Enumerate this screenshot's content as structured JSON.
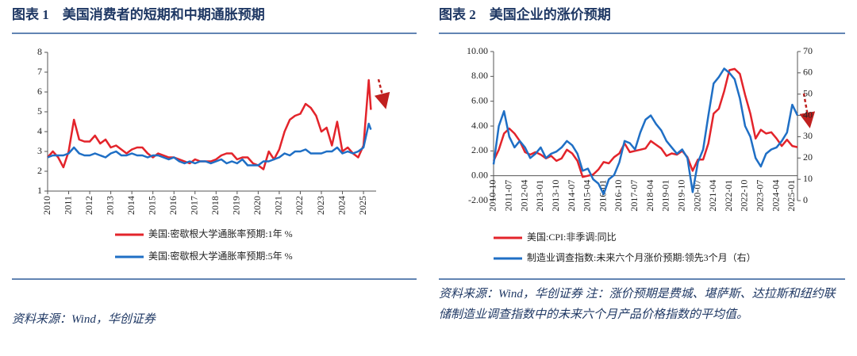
{
  "chart_data": [
    {
      "type": "line",
      "title": "图表 1　美国消费者的短期和中期通胀预期",
      "x": [
        2010,
        2010.25,
        2010.5,
        2010.75,
        2011,
        2011.25,
        2011.5,
        2011.75,
        2012,
        2012.25,
        2012.5,
        2012.75,
        2013,
        2013.25,
        2013.5,
        2013.75,
        2014,
        2014.25,
        2014.5,
        2014.75,
        2015,
        2015.25,
        2015.5,
        2015.75,
        2016,
        2016.25,
        2016.5,
        2016.75,
        2017,
        2017.25,
        2017.5,
        2017.75,
        2018,
        2018.25,
        2018.5,
        2018.75,
        2019,
        2019.25,
        2019.5,
        2019.75,
        2020,
        2020.25,
        2020.5,
        2020.75,
        2021,
        2021.25,
        2021.5,
        2021.75,
        2022,
        2022.25,
        2022.5,
        2022.75,
        2023,
        2023.25,
        2023.5,
        2023.75,
        2024,
        2024.25,
        2024.5,
        2024.75,
        2025,
        2025.25,
        2025.35
      ],
      "series": [
        {
          "name": "美国:密歇根大学通胀率预期:1年 %",
          "color": "#e3242b",
          "values": [
            2.7,
            3.0,
            2.7,
            2.2,
            3.0,
            4.6,
            3.6,
            3.5,
            3.5,
            3.8,
            3.4,
            3.6,
            3.2,
            3.3,
            3.1,
            2.9,
            3.1,
            3.2,
            3.2,
            2.9,
            2.7,
            2.9,
            2.8,
            2.7,
            2.7,
            2.6,
            2.5,
            2.4,
            2.6,
            2.5,
            2.5,
            2.5,
            2.6,
            2.8,
            2.9,
            2.9,
            2.6,
            2.7,
            2.7,
            2.4,
            2.3,
            2.1,
            3.0,
            2.6,
            3.1,
            4.0,
            4.6,
            4.8,
            4.9,
            5.4,
            5.2,
            4.8,
            4.0,
            4.2,
            3.3,
            4.5,
            3.0,
            3.2,
            2.9,
            2.7,
            3.3,
            6.6,
            5.1
          ]
        },
        {
          "name": "美国:密歇根大学通胀率预期:5年 %",
          "color": "#1f6fc5",
          "values": [
            2.7,
            2.8,
            2.8,
            2.8,
            2.9,
            3.2,
            2.9,
            2.8,
            2.8,
            2.9,
            2.8,
            2.7,
            2.9,
            3.0,
            2.8,
            2.8,
            2.9,
            2.8,
            2.8,
            2.7,
            2.8,
            2.8,
            2.7,
            2.6,
            2.7,
            2.5,
            2.4,
            2.5,
            2.4,
            2.5,
            2.5,
            2.4,
            2.5,
            2.6,
            2.4,
            2.5,
            2.4,
            2.6,
            2.3,
            2.3,
            2.3,
            2.5,
            2.5,
            2.6,
            2.7,
            2.9,
            2.8,
            3.0,
            3.0,
            3.1,
            2.9,
            2.9,
            2.9,
            3.0,
            3.0,
            3.2,
            2.9,
            3.0,
            2.9,
            3.0,
            3.2,
            4.4,
            4.1
          ]
        }
      ],
      "xlim": [
        2010,
        2025.6
      ],
      "xticks": [
        2010,
        2011,
        2012,
        2013,
        2014,
        2015,
        2016,
        2017,
        2018,
        2019,
        2020,
        2021,
        2022,
        2023,
        2024,
        2025
      ],
      "ylim": [
        1,
        8
      ],
      "yticks": [
        1,
        2,
        3,
        4,
        5,
        6,
        7,
        8
      ],
      "grid": false
    },
    {
      "type": "line",
      "title": "图表 2　美国企业的涨价预期",
      "categories": [
        "2010-10",
        null,
        null,
        "2011-07",
        null,
        null,
        "2012-04",
        null,
        null,
        "2013-01",
        null,
        null,
        "2013-10",
        null,
        null,
        "2014-07",
        null,
        null,
        "2015-04",
        null,
        null,
        "2016-01",
        null,
        null,
        "2016-10",
        null,
        null,
        "2017-07",
        null,
        null,
        "2018-04",
        null,
        null,
        "2019-01",
        null,
        null,
        "2019-10",
        null,
        null,
        "2020-07",
        null,
        null,
        "2021-04",
        null,
        null,
        "2022-01",
        null,
        null,
        "2022-10",
        null,
        null,
        "2023-07",
        null,
        null,
        "2024-04",
        null,
        null,
        "2025-01",
        null
      ],
      "series": [
        {
          "name": "美国:CPI:非季调:同比",
          "color": "#e3242b",
          "values": [
            1.2,
            2.1,
            3.4,
            3.8,
            3.4,
            2.8,
            1.9,
            1.7,
            1.9,
            1.7,
            1.4,
            1.6,
            1.2,
            1.4,
            2.1,
            1.8,
            1.2,
            -0.1,
            0.0,
            0.1,
            0.5,
            1.1,
            1.0,
            1.5,
            1.8,
            2.6,
            1.9,
            2.0,
            2.1,
            2.2,
            2.8,
            2.5,
            2.2,
            1.6,
            1.8,
            1.7,
            2.0,
            1.5,
            0.4,
            1.3,
            1.3,
            2.6,
            5.0,
            5.4,
            6.8,
            8.5,
            8.6,
            8.2,
            6.5,
            5.0,
            3.0,
            3.7,
            3.4,
            3.5,
            3.0,
            2.4,
            2.9,
            2.4,
            2.3
          ]
        },
        {
          "name": "制造业调查指数:未来六个月涨价预期:领先3个月（右）",
          "color": "#1f6fc5",
          "axis": "y2",
          "values": [
            17,
            35,
            42,
            30,
            25,
            28,
            25,
            20,
            22,
            25,
            20,
            22,
            23,
            25,
            28,
            26,
            22,
            14,
            15,
            10,
            8,
            3,
            10,
            12,
            18,
            28,
            27,
            24,
            32,
            38,
            40,
            36,
            33,
            28,
            25,
            22,
            24,
            20,
            4,
            18,
            24,
            40,
            55,
            58,
            62,
            60,
            57,
            48,
            35,
            30,
            20,
            16,
            22,
            24,
            25,
            28,
            32,
            45,
            40
          ]
        }
      ],
      "ylim": [
        -2,
        10
      ],
      "yticks": [
        {
          "value": -2,
          "label": "-2.00"
        },
        {
          "value": 0,
          "label": "0.00"
        },
        {
          "value": 2,
          "label": "2.00"
        },
        {
          "value": 4,
          "label": "4.00"
        },
        {
          "value": 6,
          "label": "6.00"
        },
        {
          "value": 8,
          "label": "8.00"
        },
        {
          "value": 10,
          "label": "10.00"
        }
      ],
      "y2lim": [
        0,
        70
      ],
      "y2ticks": [
        0,
        10,
        20,
        30,
        40,
        50,
        60,
        70
      ],
      "grid": false
    }
  ],
  "notes": [
    "资料来源：Wind，华创证券",
    "资料来源：Wind，华创证券 注：涨价预期是费城、堪萨斯、达拉斯和纽约联储制造业调查指数中的未来六个月产品价格指数的平均值。"
  ]
}
